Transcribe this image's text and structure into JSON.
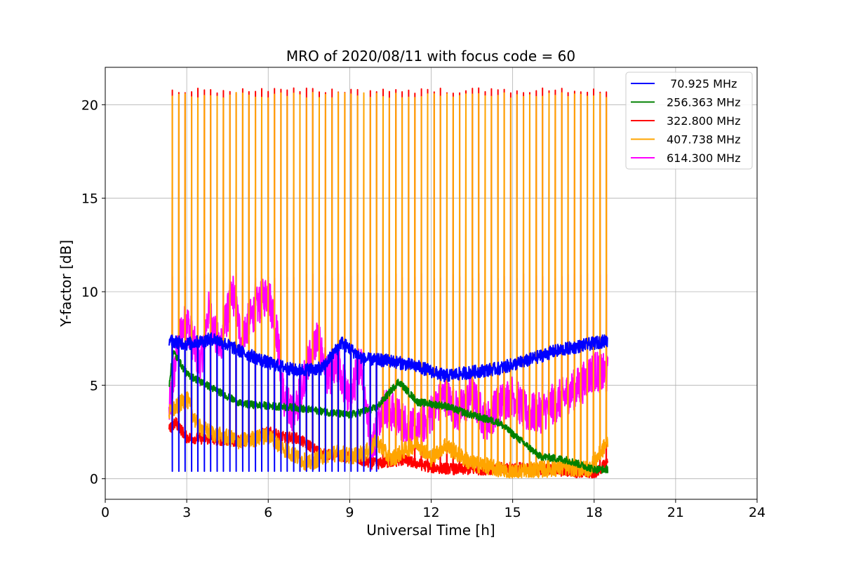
{
  "chart_data": {
    "type": "line",
    "title": "MRO of 2020/08/11 with focus code = 60",
    "xlabel": "Universal Time [h]",
    "ylabel": "Y-factor [dB]",
    "xlim": [
      0,
      24
    ],
    "ylim": [
      -1.1,
      22
    ],
    "xticks": [
      0,
      3,
      6,
      9,
      12,
      15,
      18,
      21,
      24
    ],
    "yticks": [
      0,
      5,
      10,
      15,
      20
    ],
    "grid": true,
    "legend_position": "top-right",
    "time_range": [
      2.35,
      18.5
    ],
    "pulse_period_h": 0.235,
    "series": [
      {
        "name": " 70.925 MHz",
        "color": "#0000ff",
        "baseline": {
          "x": [
            2.35,
            3.0,
            4.0,
            5.0,
            6.0,
            7.0,
            8.0,
            8.7,
            9.5,
            10.5,
            11.5,
            12.5,
            13.5,
            14.5,
            15.5,
            16.5,
            17.5,
            18.5
          ],
          "y": [
            7.4,
            7.2,
            7.5,
            6.8,
            6.2,
            5.8,
            5.9,
            7.3,
            6.4,
            6.3,
            6.0,
            5.5,
            5.7,
            5.9,
            6.3,
            6.8,
            7.1,
            7.4
          ]
        },
        "pulse_low": 0.4,
        "pulses_until": 10.0
      },
      {
        "name": "256.363 MHz",
        "color": "#008000",
        "baseline": {
          "x": [
            2.35,
            2.5,
            3.0,
            4.0,
            5.0,
            6.0,
            7.0,
            8.0,
            9.0,
            10.0,
            10.8,
            11.5,
            12.5,
            13.5,
            14.5,
            15.5,
            16.0,
            17.0,
            18.0,
            18.5
          ],
          "y": [
            5.0,
            6.8,
            5.6,
            4.8,
            4.0,
            3.9,
            3.8,
            3.6,
            3.4,
            3.8,
            5.2,
            4.1,
            3.9,
            3.4,
            3.0,
            1.8,
            1.2,
            1.0,
            0.5,
            0.5
          ]
        }
      },
      {
        "name": "322.800 MHz",
        "color": "#ff0000",
        "baseline": {
          "x": [
            2.35,
            2.6,
            3.0,
            4.0,
            5.0,
            6.0,
            6.6,
            7.0,
            7.5,
            8.0,
            9.0,
            9.6,
            10.0,
            11.0,
            12.0,
            13.0,
            14.0,
            15.0,
            16.0,
            17.0,
            18.0,
            18.5
          ],
          "y": [
            2.6,
            3.0,
            2.2,
            2.1,
            2.0,
            2.5,
            2.2,
            2.2,
            1.8,
            1.3,
            1.2,
            0.9,
            0.8,
            1.0,
            0.6,
            0.5,
            0.5,
            0.6,
            0.5,
            0.4,
            0.2,
            0.9
          ]
        },
        "pulse_high": 20.75
      },
      {
        "name": "407.738 MHz",
        "color": "#ffa500",
        "baseline": {
          "x": [
            2.35,
            2.6,
            3.0,
            3.4,
            4.0,
            5.0,
            6.0,
            6.4,
            7.0,
            7.5,
            8.0,
            8.6,
            9.0,
            9.6,
            10.0,
            10.5,
            11.0,
            11.5,
            12.0,
            12.5,
            13.0,
            13.5,
            14.0,
            14.5,
            15.0,
            16.0,
            17.0,
            17.8,
            18.2,
            18.5
          ],
          "y": [
            3.5,
            3.8,
            4.3,
            2.8,
            2.4,
            2.0,
            2.3,
            1.8,
            1.2,
            0.8,
            1.2,
            1.4,
            1.2,
            1.4,
            2.0,
            1.0,
            1.5,
            1.9,
            1.1,
            1.8,
            1.3,
            0.8,
            0.7,
            0.5,
            0.3,
            0.5,
            0.6,
            0.5,
            1.3,
            2.0
          ]
        },
        "pulse_high": 20.5
      },
      {
        "name": "614.300 MHz",
        "color": "#ff00ff",
        "baseline": {
          "x": [
            2.35,
            2.7,
            3.0,
            3.5,
            3.8,
            4.2,
            4.7,
            5.0,
            5.5,
            6.0,
            6.3,
            6.6,
            7.0,
            7.4,
            7.8,
            8.2,
            8.6,
            9.0,
            9.4,
            9.8,
            10.2,
            10.6,
            11.0,
            11.5,
            12.0,
            12.5,
            13.0,
            13.5,
            14.0,
            14.5,
            15.0,
            15.5,
            16.0,
            16.5,
            17.0,
            17.5,
            18.0,
            18.5
          ],
          "y": [
            3.5,
            7.5,
            8.5,
            6.0,
            9.0,
            7.0,
            10.0,
            7.5,
            9.0,
            10.0,
            8.0,
            4.0,
            3.5,
            6.0,
            7.5,
            5.5,
            6.0,
            4.0,
            6.5,
            1.5,
            4.0,
            3.5,
            3.0,
            2.5,
            3.5,
            4.5,
            3.5,
            4.5,
            3.0,
            4.0,
            4.5,
            3.5,
            3.5,
            4.0,
            4.5,
            5.0,
            5.8,
            5.5
          ]
        },
        "pulse_high": 10.85
      }
    ]
  }
}
